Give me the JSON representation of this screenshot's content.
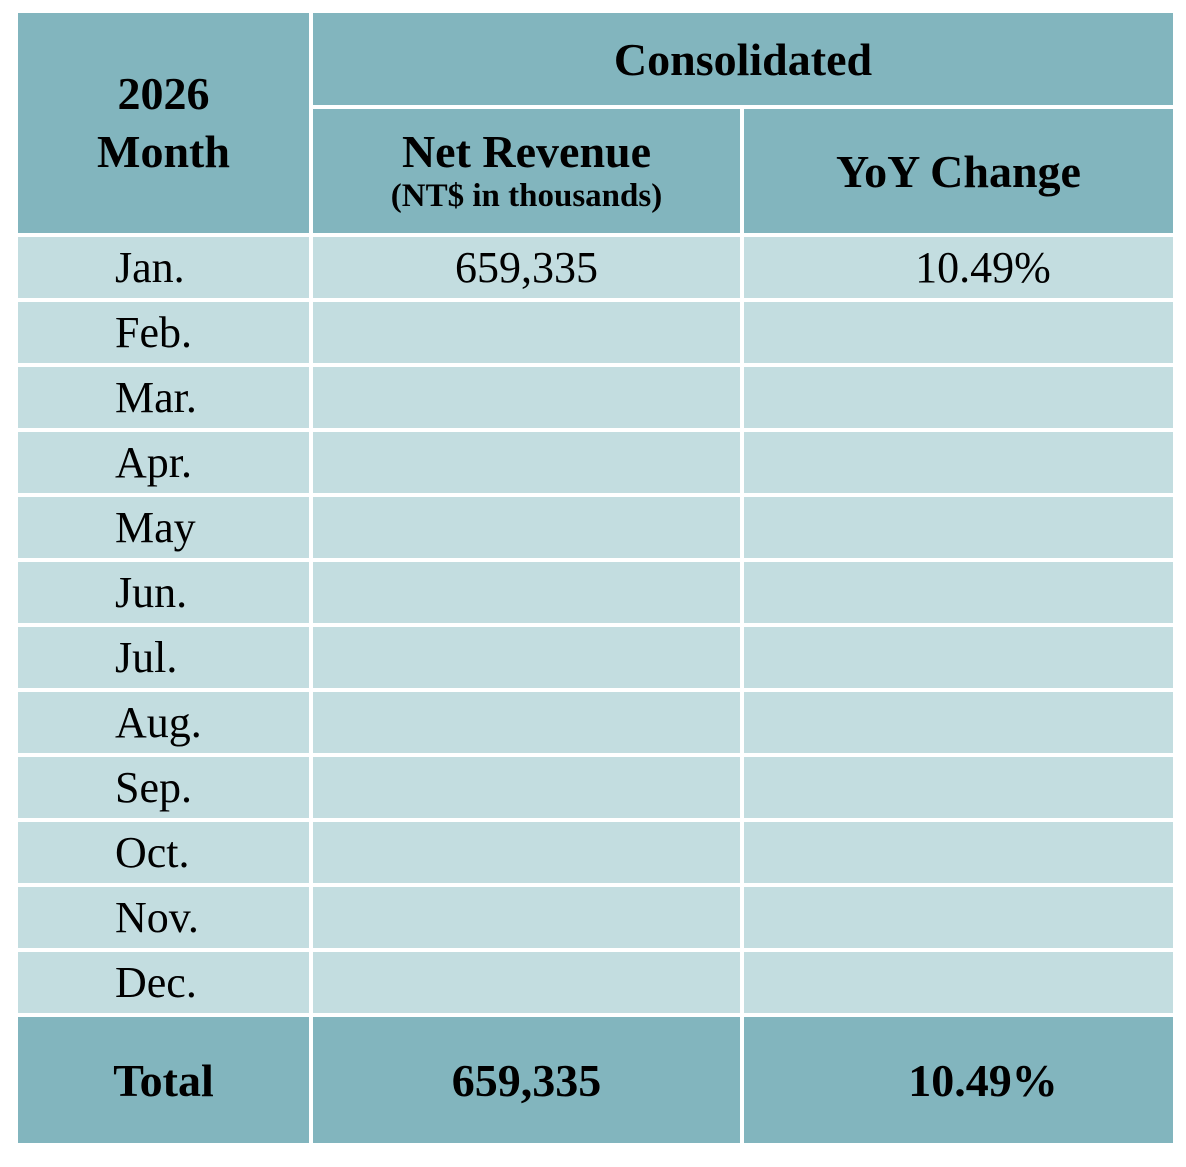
{
  "header": {
    "year": "2026",
    "month_label": "Month",
    "group_label": "Consolidated",
    "revenue_label": "Net Revenue",
    "revenue_unit": "(NT$ in thousands)",
    "yoy_label": "YoY Change"
  },
  "rows": [
    {
      "month": "Jan.",
      "revenue": "659,335",
      "yoy": "10.49%"
    },
    {
      "month": "Feb.",
      "revenue": "",
      "yoy": ""
    },
    {
      "month": "Mar.",
      "revenue": "",
      "yoy": ""
    },
    {
      "month": "Apr.",
      "revenue": "",
      "yoy": ""
    },
    {
      "month": "May",
      "revenue": "",
      "yoy": ""
    },
    {
      "month": "Jun.",
      "revenue": "",
      "yoy": ""
    },
    {
      "month": "Jul.",
      "revenue": "",
      "yoy": ""
    },
    {
      "month": "Aug.",
      "revenue": "",
      "yoy": ""
    },
    {
      "month": "Sep.",
      "revenue": "",
      "yoy": ""
    },
    {
      "month": "Oct.",
      "revenue": "",
      "yoy": ""
    },
    {
      "month": "Nov.",
      "revenue": "",
      "yoy": ""
    },
    {
      "month": "Dec.",
      "revenue": "",
      "yoy": ""
    }
  ],
  "total": {
    "label": "Total",
    "revenue": "659,335",
    "yoy": "10.49%"
  },
  "colors": {
    "header_bg": "#82b5be",
    "row_bg": "#c3dde0",
    "grid": "#ffffff"
  }
}
